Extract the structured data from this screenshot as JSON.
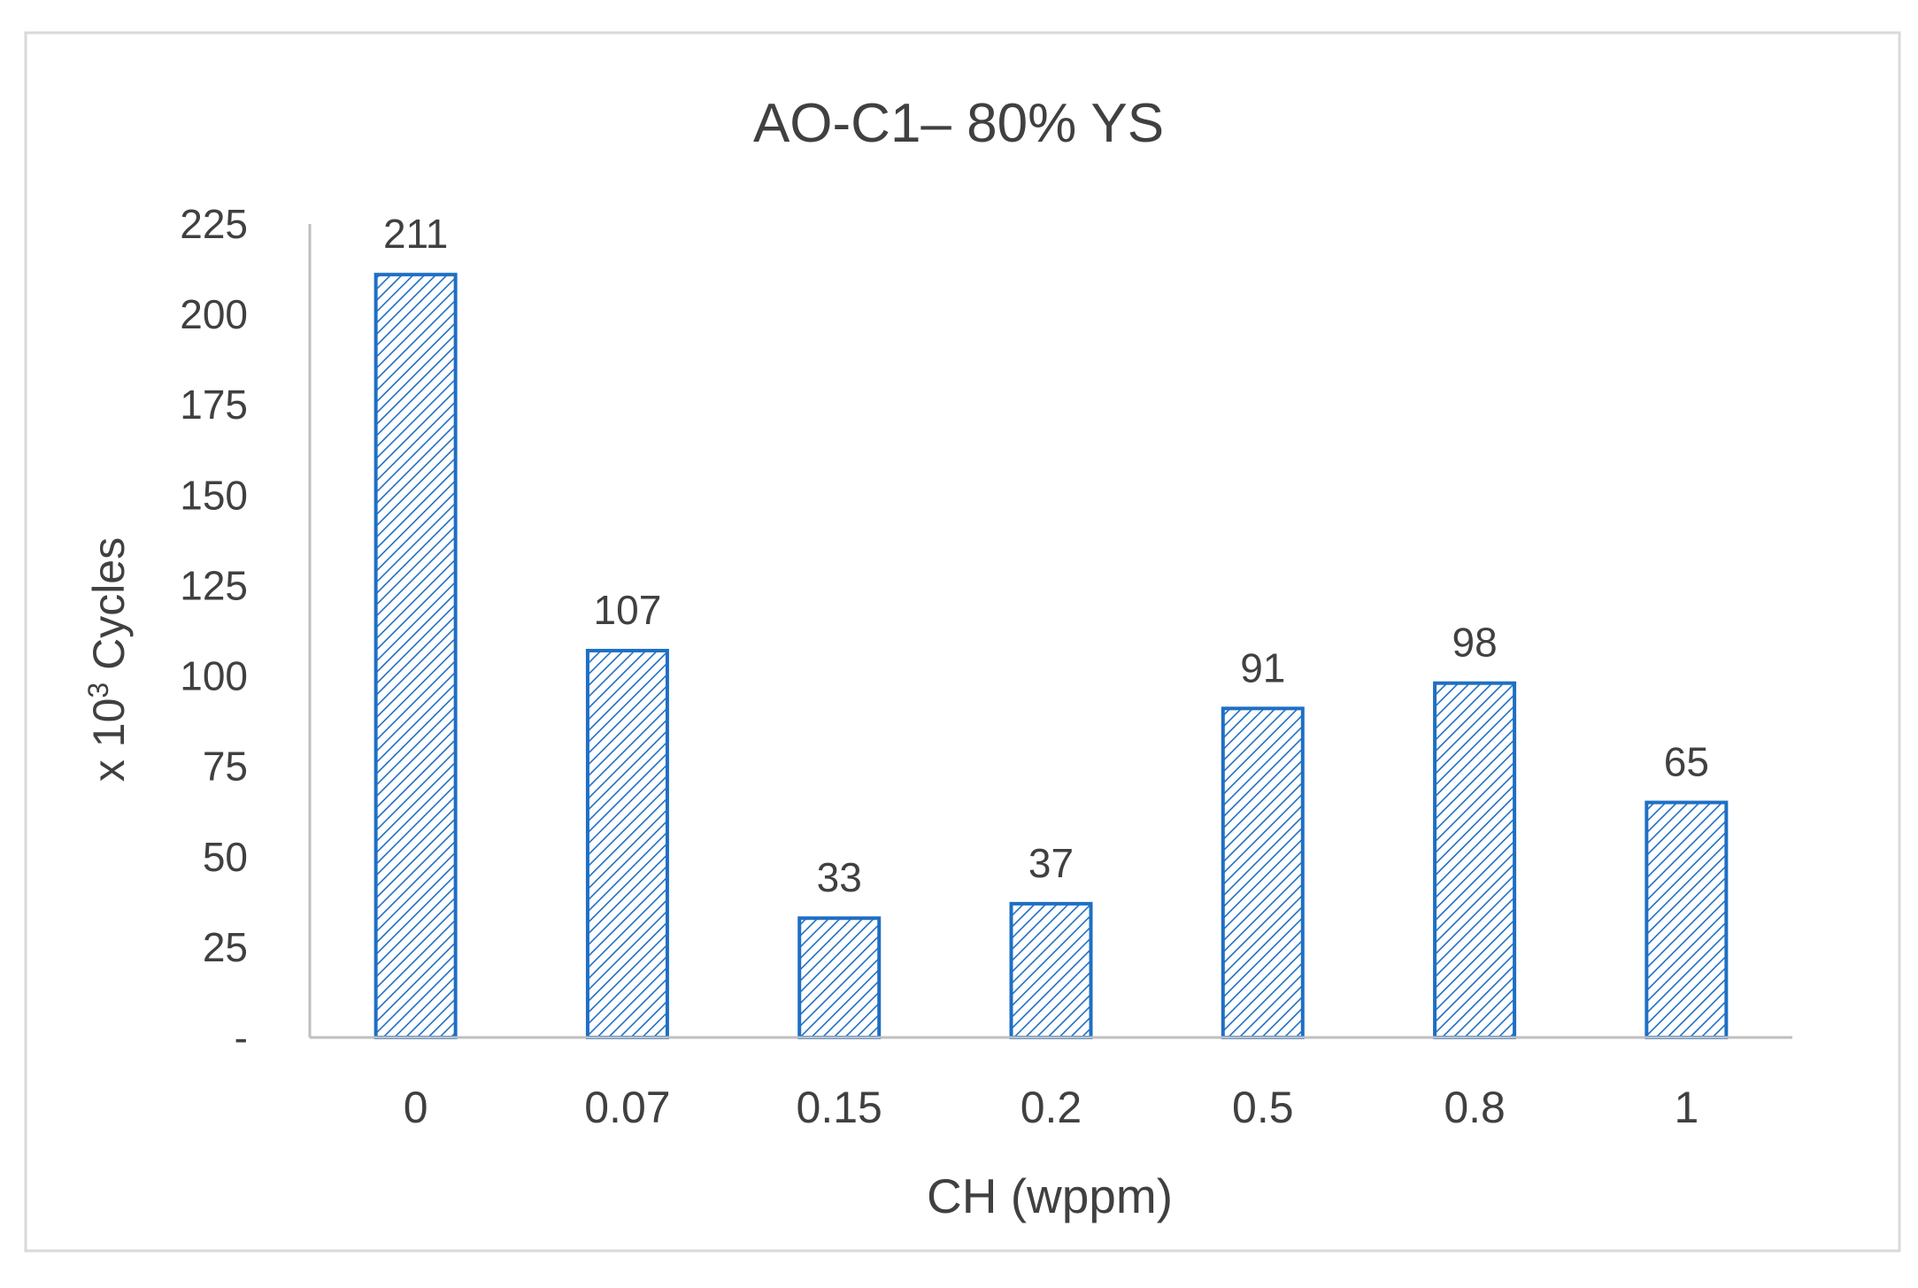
{
  "chart_data": {
    "type": "bar",
    "title": "AO-C1– 80% YS",
    "xlabel": "CH (wppm)",
    "ylabel": {
      "prefix": "x 10",
      "superscript": "3",
      "suffix": " Cycles"
    },
    "categories": [
      "0",
      "0.07",
      "0.15",
      "0.2",
      "0.5",
      "0.8",
      "1"
    ],
    "values": [
      211,
      107,
      33,
      37,
      91,
      98,
      65
    ],
    "data_labels": [
      "211",
      "107",
      "33",
      "37",
      "91",
      "98",
      "65"
    ],
    "ylim": [
      0,
      225
    ],
    "yticks": [
      0,
      25,
      50,
      75,
      100,
      125,
      150,
      175,
      200,
      225
    ],
    "ytick_labels": [
      "-",
      "25",
      "50",
      "75",
      "100",
      "125",
      "150",
      "175",
      "200",
      "225"
    ],
    "grid": false,
    "legend": "none",
    "colors": {
      "bar_edge": "#1f6fc4",
      "bar_hatch": "#1f6fc4",
      "bar_fill": "#ffffff",
      "axis": "#bfbfbf",
      "text": "#404040",
      "frame": "#d9d9d9"
    },
    "bar_pattern": "diagonal-hatch"
  }
}
